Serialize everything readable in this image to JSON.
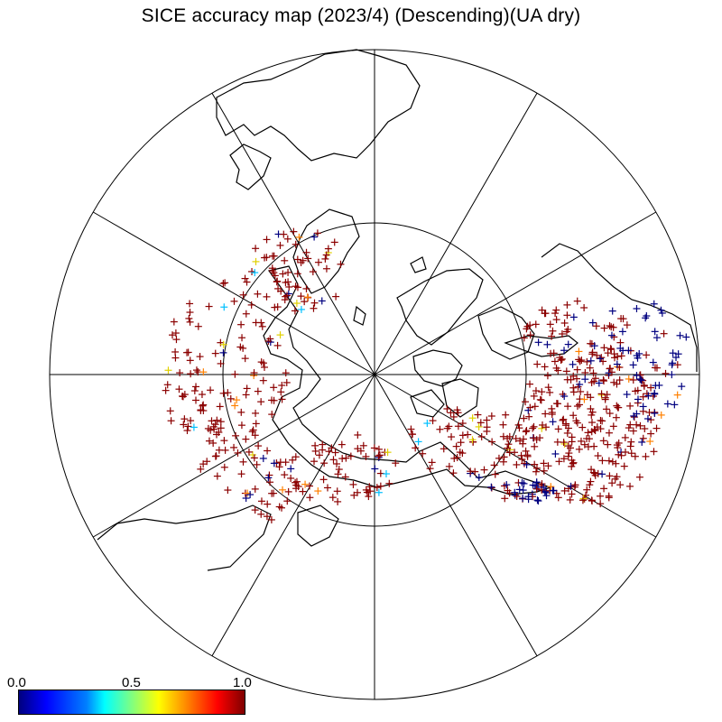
{
  "title": "SICE accuracy map (2023/4) (Descending)(UA dry)",
  "projection": "north-polar-stereographic",
  "colorbar": {
    "min_label": "0.0",
    "mid_label": "0.5",
    "max_label": "1.0",
    "colormap": "jet",
    "colors": [
      "#00007f",
      "#0000ff",
      "#00ffff",
      "#ffff00",
      "#ff0000",
      "#7f0000"
    ]
  },
  "marker_colors": {
    "high": "#8b0000",
    "low": "#000080",
    "mid_cyan": "#00c0ff",
    "mid_yellow": "#e0d000",
    "mid_orange": "#ff8000"
  }
}
